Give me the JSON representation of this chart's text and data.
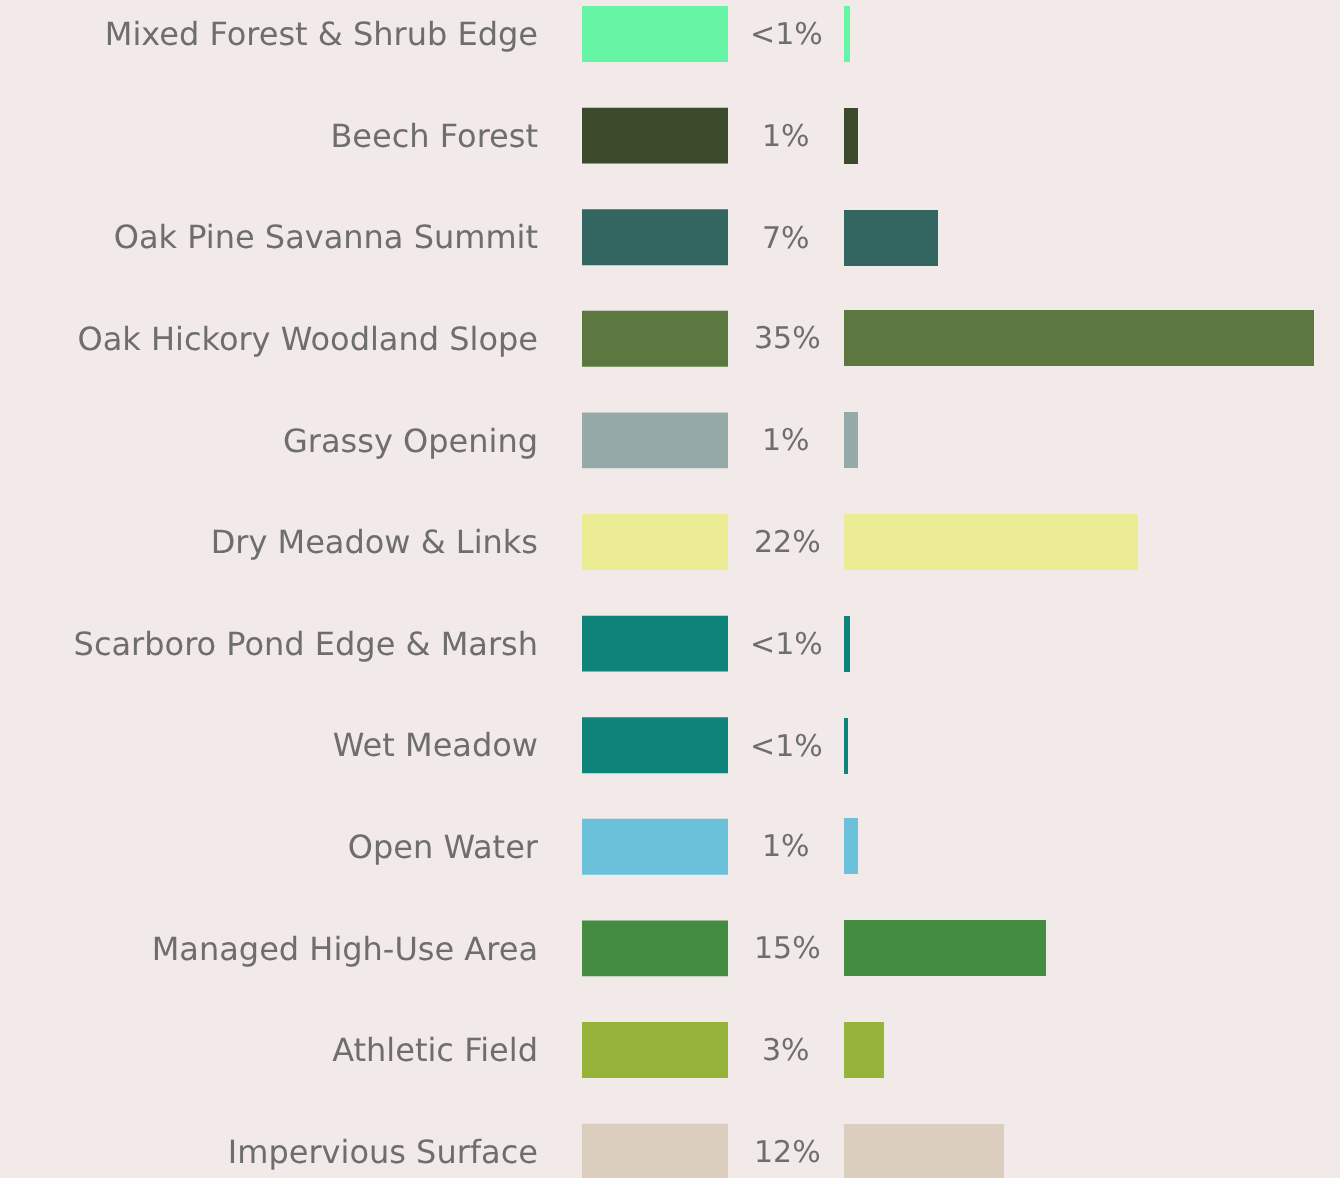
{
  "chart_data": {
    "type": "bar",
    "orientation": "horizontal",
    "categories": [
      "Mixed Forest & Shrub Edge",
      "Beech Forest",
      "Oak Pine Savanna Summit",
      "Oak Hickory Woodland Slope",
      "Grassy Opening",
      "Dry Meadow & Links",
      "Scarboro Pond Edge & Marsh",
      "Wet Meadow",
      "Open Water",
      "Managed High-Use Area",
      "Athletic Field",
      "Impervious Surface"
    ],
    "values": [
      0.4,
      1,
      7,
      35,
      1,
      22,
      0.5,
      0.3,
      1,
      15,
      3,
      12
    ],
    "value_labels": [
      "<1%",
      "1%",
      "7%",
      "35%",
      "1%",
      "22%",
      "<1%",
      "<1%",
      "1%",
      "15%",
      "3%",
      "12%"
    ],
    "colors": [
      "#66f5a5",
      "#3b4a2a",
      "#336660",
      "#5c7840",
      "#95aaa8",
      "#ecec94",
      "#0f837a",
      "#0f837a",
      "#6bc0da",
      "#438c40",
      "#97b43a",
      "#dccebe"
    ],
    "xlim": [
      0,
      37
    ],
    "tick_labels": "y",
    "grid": false
  }
}
